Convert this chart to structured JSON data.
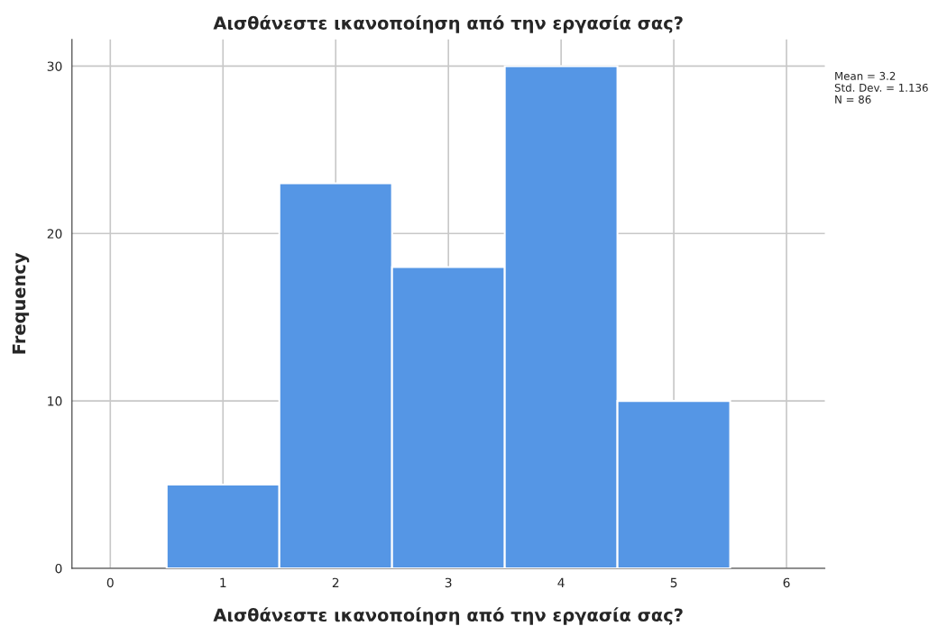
{
  "chart_data": {
    "type": "histogram",
    "title": "Αισθάνεστε ικανοποίηση από την εργασία σας?",
    "xlabel": "Αισθάνεστε ικανοποίηση από την εργασία σας?",
    "ylabel": "Frequency",
    "bins": [
      0.5,
      1.5,
      2.5,
      3.5,
      4.5,
      5.5
    ],
    "values": [
      5,
      23,
      18,
      30,
      10
    ],
    "color": "#5596e5",
    "xlim": [
      -0.34,
      6.34
    ],
    "xticks": [
      0,
      1,
      2,
      3,
      4,
      5,
      6
    ],
    "ylim": [
      0,
      31.6
    ],
    "yticks": [
      0,
      10,
      20,
      30
    ],
    "grid": true,
    "legend": false,
    "annotations": [
      "Mean = 3.2",
      "Std. Dev. = 1.136",
      "N = 86"
    ]
  }
}
